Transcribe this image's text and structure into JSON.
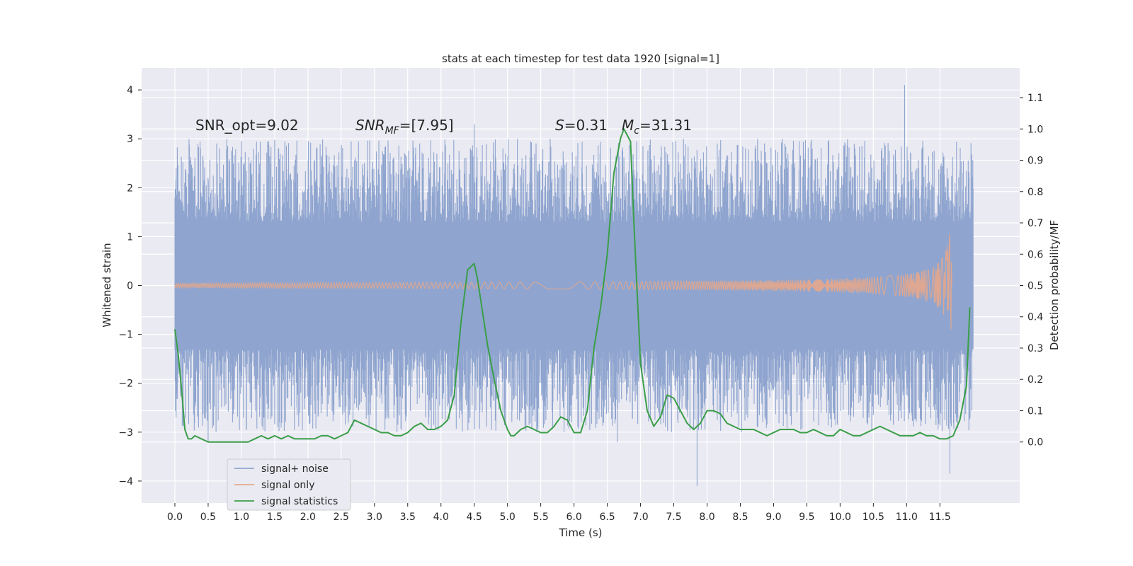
{
  "chart_data": {
    "type": "line",
    "title": "stats at each timestep for test data 1920 [signal=1]",
    "xlabel": "Time (s)",
    "ylabel": "Whitened strain",
    "y2label": "Detection probability/MF",
    "xlim": [
      -0.5,
      12.7
    ],
    "ylim": [
      -4.45,
      4.45
    ],
    "y2lim": [
      -0.195,
      1.195
    ],
    "x_ticks": [
      "0.0",
      "0.5",
      "1.0",
      "1.5",
      "2.0",
      "2.5",
      "3.0",
      "3.5",
      "4.0",
      "4.5",
      "5.0",
      "5.5",
      "6.0",
      "6.5",
      "7.0",
      "7.5",
      "8.0",
      "8.5",
      "9.0",
      "9.5",
      "10.0",
      "10.5",
      "11.0",
      "11.5"
    ],
    "y_ticks": [
      -4,
      -3,
      -2,
      -1,
      0,
      1,
      2,
      3,
      4
    ],
    "y2_ticks": [
      "0.0",
      "0.1",
      "0.2",
      "0.3",
      "0.4",
      "0.5",
      "0.6",
      "0.7",
      "0.8",
      "0.9",
      "1.0",
      "1.1"
    ],
    "grid": true,
    "legend_position": "lower-left",
    "annotations": {
      "snr_opt": "SNR_opt=9.02",
      "snr_mf_main": "SNR",
      "snr_mf_sub": "MF",
      "snr_mf_value": "=[7.95]",
      "s_main": "S",
      "s_value": "=0.31",
      "mc_main": "M",
      "mc_sub": "c",
      "mc_value": "=31.31"
    },
    "series": [
      {
        "name": "signal+ noise",
        "color": "#8fa5cf",
        "axis": "left",
        "x_range": [
          0.0,
          12.0
        ],
        "core_band": [
          -1.3,
          1.3
        ],
        "notable_peaks": [
          [
            0.02,
            2.4
          ],
          [
            4.5,
            3.3
          ],
          [
            10.97,
            4.1
          ],
          [
            7.85,
            -4.1
          ],
          [
            11.65,
            -3.85
          ],
          [
            0.5,
            -3.2
          ],
          [
            6.65,
            -3.2
          ]
        ]
      },
      {
        "name": "signal only",
        "color": "#e5a78b",
        "axis": "left",
        "x_range": [
          0.0,
          11.68
        ],
        "chirp_peak": [
          11.65,
          2.2
        ]
      },
      {
        "name": "signal statistics",
        "color": "#3a9e48",
        "axis": "right",
        "x": [
          0.0,
          0.05,
          0.1,
          0.15,
          0.2,
          0.25,
          0.3,
          0.4,
          0.5,
          0.6,
          0.8,
          1.0,
          1.1,
          1.2,
          1.3,
          1.4,
          1.5,
          1.6,
          1.7,
          1.8,
          1.9,
          2.0,
          2.1,
          2.2,
          2.3,
          2.4,
          2.5,
          2.6,
          2.7,
          2.8,
          2.9,
          3.0,
          3.1,
          3.2,
          3.3,
          3.4,
          3.5,
          3.6,
          3.7,
          3.8,
          3.9,
          4.0,
          4.1,
          4.2,
          4.3,
          4.4,
          4.5,
          4.55,
          4.6,
          4.7,
          4.8,
          4.9,
          5.0,
          5.05,
          5.1,
          5.2,
          5.3,
          5.4,
          5.5,
          5.6,
          5.7,
          5.8,
          5.9,
          6.0,
          6.1,
          6.2,
          6.3,
          6.4,
          6.5,
          6.6,
          6.7,
          6.75,
          6.8,
          6.85,
          6.9,
          7.0,
          7.1,
          7.2,
          7.3,
          7.4,
          7.5,
          7.6,
          7.7,
          7.8,
          7.9,
          8.0,
          8.1,
          8.2,
          8.3,
          8.4,
          8.5,
          8.6,
          8.7,
          8.8,
          8.9,
          9.0,
          9.1,
          9.2,
          9.3,
          9.4,
          9.5,
          9.6,
          9.7,
          9.8,
          9.9,
          10.0,
          10.1,
          10.2,
          10.3,
          10.4,
          10.5,
          10.6,
          10.7,
          10.8,
          10.9,
          11.0,
          11.1,
          11.2,
          11.3,
          11.4,
          11.5,
          11.6,
          11.7,
          11.8,
          11.9,
          11.95
        ],
        "values": [
          0.36,
          0.28,
          0.17,
          0.04,
          0.01,
          0.01,
          0.02,
          0.01,
          0.0,
          0.0,
          0.0,
          0.0,
          0.0,
          0.01,
          0.02,
          0.01,
          0.02,
          0.01,
          0.02,
          0.01,
          0.01,
          0.01,
          0.01,
          0.02,
          0.02,
          0.01,
          0.02,
          0.03,
          0.07,
          0.06,
          0.05,
          0.04,
          0.03,
          0.03,
          0.02,
          0.02,
          0.03,
          0.05,
          0.06,
          0.04,
          0.04,
          0.05,
          0.07,
          0.15,
          0.38,
          0.55,
          0.57,
          0.52,
          0.45,
          0.31,
          0.2,
          0.1,
          0.04,
          0.02,
          0.02,
          0.04,
          0.05,
          0.04,
          0.03,
          0.03,
          0.05,
          0.08,
          0.07,
          0.03,
          0.03,
          0.1,
          0.3,
          0.43,
          0.6,
          0.86,
          0.97,
          1.0,
          0.98,
          0.96,
          0.7,
          0.25,
          0.1,
          0.05,
          0.08,
          0.15,
          0.14,
          0.1,
          0.06,
          0.04,
          0.06,
          0.1,
          0.1,
          0.09,
          0.06,
          0.05,
          0.04,
          0.04,
          0.04,
          0.03,
          0.02,
          0.03,
          0.04,
          0.04,
          0.04,
          0.03,
          0.03,
          0.04,
          0.03,
          0.02,
          0.02,
          0.04,
          0.03,
          0.02,
          0.02,
          0.03,
          0.04,
          0.05,
          0.04,
          0.03,
          0.02,
          0.02,
          0.02,
          0.03,
          0.02,
          0.02,
          0.01,
          0.01,
          0.02,
          0.07,
          0.18,
          0.43
        ]
      }
    ]
  }
}
